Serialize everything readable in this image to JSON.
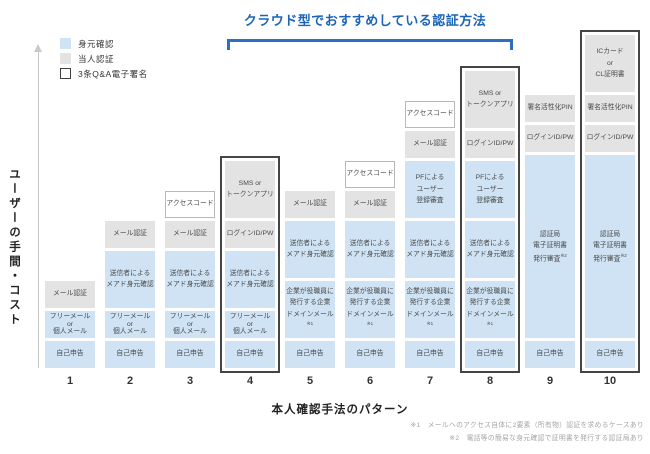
{
  "chart_data": {
    "type": "bar",
    "stacked": true,
    "orientation": "vertical",
    "title": "クラウド型でおすすめしている認証方法",
    "xlabel": "本人確認手法のパターン",
    "ylabel": "ユーザーの手間・コスト",
    "y_axis": "unlabeled (conceptual effort/cost axis with up arrow)",
    "legend": [
      {
        "label": "身元確認",
        "kind": "idv"
      },
      {
        "label": "当人認証",
        "kind": "auth"
      },
      {
        "label": "3条Q&A電子署名",
        "kind": "signature"
      }
    ],
    "legend_position": "top-left",
    "bracket": {
      "from_column": 4,
      "to_column": 8,
      "meaning": "クラウド型でおすすめしている認証方法"
    },
    "columns": [
      {
        "id": "1",
        "outlined": false,
        "segments": [
          {
            "label": "自己申告",
            "kind": "idv",
            "units": 1
          },
          {
            "label": "フリーメール\nor\n個人メール",
            "kind": "idv",
            "units": 1
          },
          {
            "label": "メール認証",
            "kind": "auth",
            "units": 1
          }
        ]
      },
      {
        "id": "2",
        "outlined": false,
        "segments": [
          {
            "label": "自己申告",
            "kind": "idv",
            "units": 1
          },
          {
            "label": "フリーメール\nor\n個人メール",
            "kind": "idv",
            "units": 1
          },
          {
            "label": "送信者による\nメアド身元確認",
            "kind": "idv",
            "units": 2
          },
          {
            "label": "メール認証",
            "kind": "auth",
            "units": 1
          }
        ]
      },
      {
        "id": "3",
        "outlined": false,
        "segments": [
          {
            "label": "自己申告",
            "kind": "idv",
            "units": 1
          },
          {
            "label": "フリーメール\nor\n個人メール",
            "kind": "idv",
            "units": 1
          },
          {
            "label": "送信者による\nメアド身元確認",
            "kind": "idv",
            "units": 2
          },
          {
            "label": "メール認証",
            "kind": "auth",
            "units": 1
          },
          {
            "label": "アクセスコード",
            "kind": "plain",
            "units": 1
          }
        ]
      },
      {
        "id": "4",
        "outlined": true,
        "segments": [
          {
            "label": "自己申告",
            "kind": "idv",
            "units": 1
          },
          {
            "label": "フリーメール\nor\n個人メール",
            "kind": "idv",
            "units": 1
          },
          {
            "label": "送信者による\nメアド身元確認",
            "kind": "idv",
            "units": 2
          },
          {
            "label": "ログインID/PW",
            "kind": "auth",
            "units": 1
          },
          {
            "label": "SMS or\nトークンアプリ",
            "kind": "auth",
            "units": 2
          }
        ]
      },
      {
        "id": "5",
        "outlined": false,
        "segments": [
          {
            "label": "自己申告",
            "kind": "idv",
            "units": 1
          },
          {
            "label": "企業が役職員に\n発行する企業\nドメインメール※1",
            "kind": "idv",
            "units": 2
          },
          {
            "label": "送信者による\nメアド身元確認",
            "kind": "idv",
            "units": 2
          },
          {
            "label": "メール認証",
            "kind": "auth",
            "units": 1
          }
        ]
      },
      {
        "id": "6",
        "outlined": false,
        "segments": [
          {
            "label": "自己申告",
            "kind": "idv",
            "units": 1
          },
          {
            "label": "企業が役職員に\n発行する企業\nドメインメール※1",
            "kind": "idv",
            "units": 2
          },
          {
            "label": "送信者による\nメアド身元確認",
            "kind": "idv",
            "units": 2
          },
          {
            "label": "メール認証",
            "kind": "auth",
            "units": 1
          },
          {
            "label": "アクセスコード",
            "kind": "plain",
            "units": 1
          }
        ]
      },
      {
        "id": "7",
        "outlined": false,
        "segments": [
          {
            "label": "自己申告",
            "kind": "idv",
            "units": 1
          },
          {
            "label": "企業が役職員に\n発行する企業\nドメインメール※1",
            "kind": "idv",
            "units": 2
          },
          {
            "label": "送信者による\nメアド身元確認",
            "kind": "idv",
            "units": 2
          },
          {
            "label": "PFによる\nユーザー\n登録審査",
            "kind": "idv",
            "units": 2
          },
          {
            "label": "メール認証",
            "kind": "auth",
            "units": 1
          },
          {
            "label": "アクセスコード",
            "kind": "plain",
            "units": 1
          }
        ]
      },
      {
        "id": "8",
        "outlined": true,
        "segments": [
          {
            "label": "自己申告",
            "kind": "idv",
            "units": 1
          },
          {
            "label": "企業が役職員に\n発行する企業\nドメインメール※1",
            "kind": "idv",
            "units": 2
          },
          {
            "label": "送信者による\nメアド身元確認",
            "kind": "idv",
            "units": 2
          },
          {
            "label": "PFによる\nユーザー\n登録審査",
            "kind": "idv",
            "units": 2
          },
          {
            "label": "ログインID/PW",
            "kind": "auth",
            "units": 1
          },
          {
            "label": "SMS or\nトークンアプリ",
            "kind": "auth",
            "units": 2
          }
        ]
      },
      {
        "id": "9",
        "outlined": false,
        "segments": [
          {
            "label": "自己申告",
            "kind": "idv",
            "units": 1
          },
          {
            "label": "認証局\n電子証明書\n発行審査※2",
            "kind": "idv",
            "units": 6.2
          },
          {
            "label": "ログインID/PW",
            "kind": "auth",
            "units": 1
          },
          {
            "label": "署名活性化PIN",
            "kind": "auth",
            "units": 1
          }
        ]
      },
      {
        "id": "10",
        "outlined": true,
        "segments": [
          {
            "label": "自己申告",
            "kind": "idv",
            "units": 1
          },
          {
            "label": "認証局\n電子証明書\n発行審査※2",
            "kind": "idv",
            "units": 6.2
          },
          {
            "label": "ログインID/PW",
            "kind": "auth",
            "units": 1
          },
          {
            "label": "署名活性化PIN",
            "kind": "auth",
            "units": 1
          },
          {
            "label": "ICカード\nor\nCL証明書",
            "kind": "auth",
            "units": 2
          }
        ]
      }
    ],
    "footnotes": [
      "※1　メールへのアクセス自体に2要素（所有物）認証を求めるケースあり",
      "※2　電話等の簡易な身元確認で証明書を発行する認証局あり"
    ],
    "colors": {
      "idv": "#cfe3f4",
      "auth": "#e3e3e3",
      "plain": "#ffffff",
      "outline": "#454545",
      "title": "#1b64b8",
      "bracket": "#2a6fc0",
      "footnote": "#a5a5a5"
    }
  }
}
